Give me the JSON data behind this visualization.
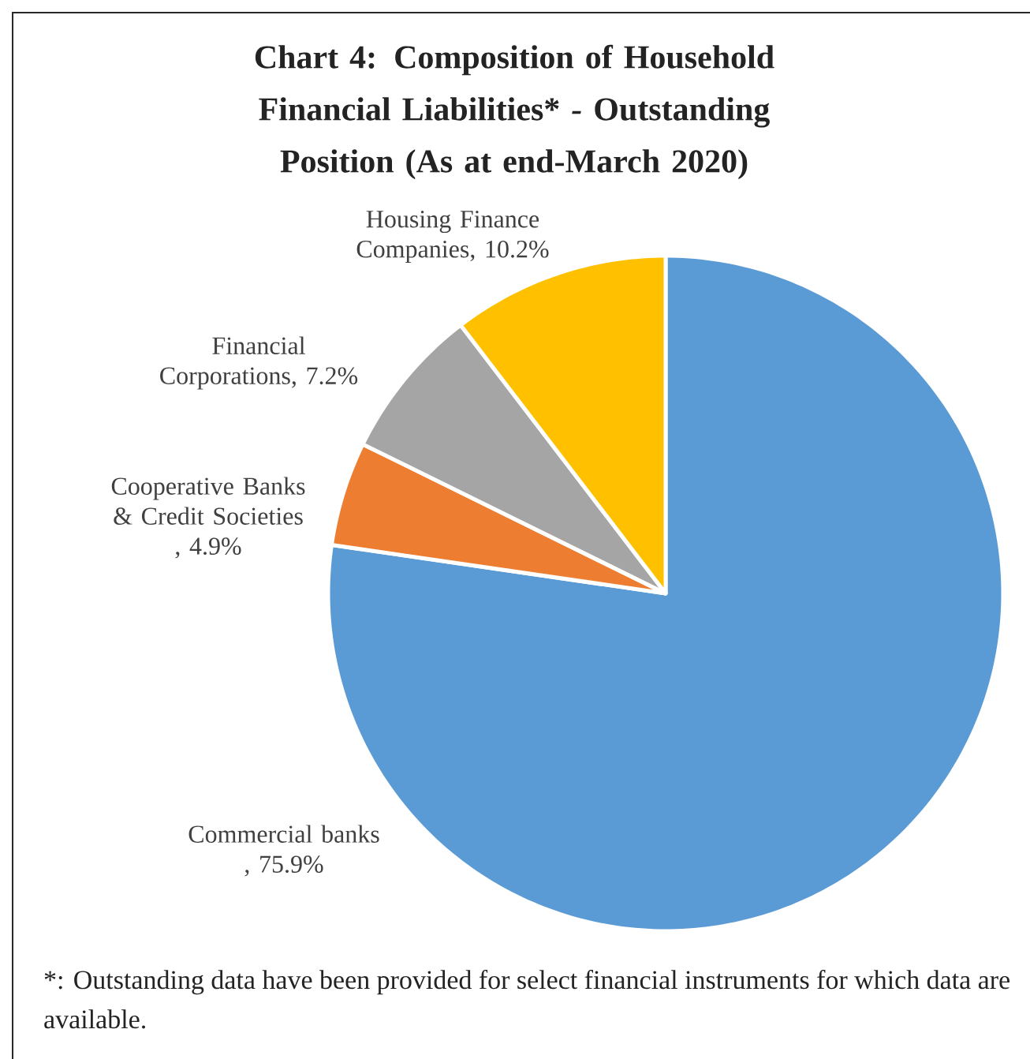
{
  "chart_data": {
    "type": "pie",
    "title": "Chart 4:  Composition of Household Financial Liabilities* *-* Outstanding Position (As at end-March 2020)",
    "categories": [
      "Commercial banks",
      "Cooperative Banks & Credit Societies",
      "Financial Corporations",
      "Housing Finance Companies"
    ],
    "values": [
      75.9,
      4.9,
      7.2,
      10.2
    ],
    "value_labels": [
      ", 75.9%",
      ", 4.9%",
      ", 7.2%",
      ", 10.2%"
    ],
    "colors": [
      "#5b9bd5",
      "#ed7d31",
      "#a5a5a5",
      "#ffc000"
    ],
    "annotations": [
      "*: Outstanding data have been provided for select financial instruments for which data are available."
    ]
  }
}
